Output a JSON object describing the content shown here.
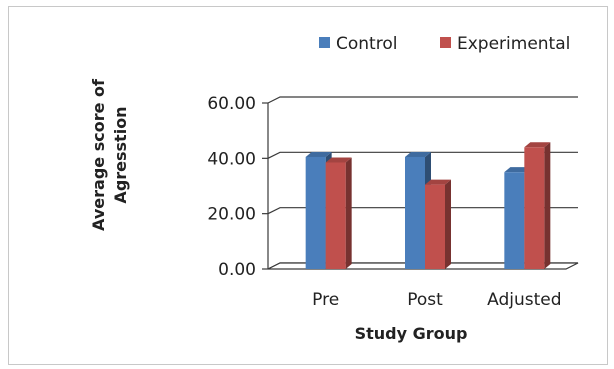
{
  "chart_data": {
    "type": "bar",
    "title": "",
    "xlabel": "Study Group",
    "ylabel": "Average score of Agresstion",
    "ylabel_lines": [
      "Average score of",
      "Agresstion"
    ],
    "categories": [
      "Pre",
      "Post",
      "Adjusted"
    ],
    "series": [
      {
        "name": "Control",
        "color": "#4a7ebb",
        "values": [
          40.5,
          40.5,
          35.0
        ]
      },
      {
        "name": "Experimental",
        "color": "#c0504d",
        "values": [
          38.5,
          30.5,
          44.0
        ]
      }
    ],
    "ylim": [
      0,
      60
    ],
    "yticks": [
      "0.00",
      "20.00",
      "40.00",
      "60.00"
    ],
    "ytick_values": [
      0,
      20,
      40,
      60
    ],
    "grid": true,
    "legend_position": "top-right",
    "style": "3d-clustered-column"
  }
}
